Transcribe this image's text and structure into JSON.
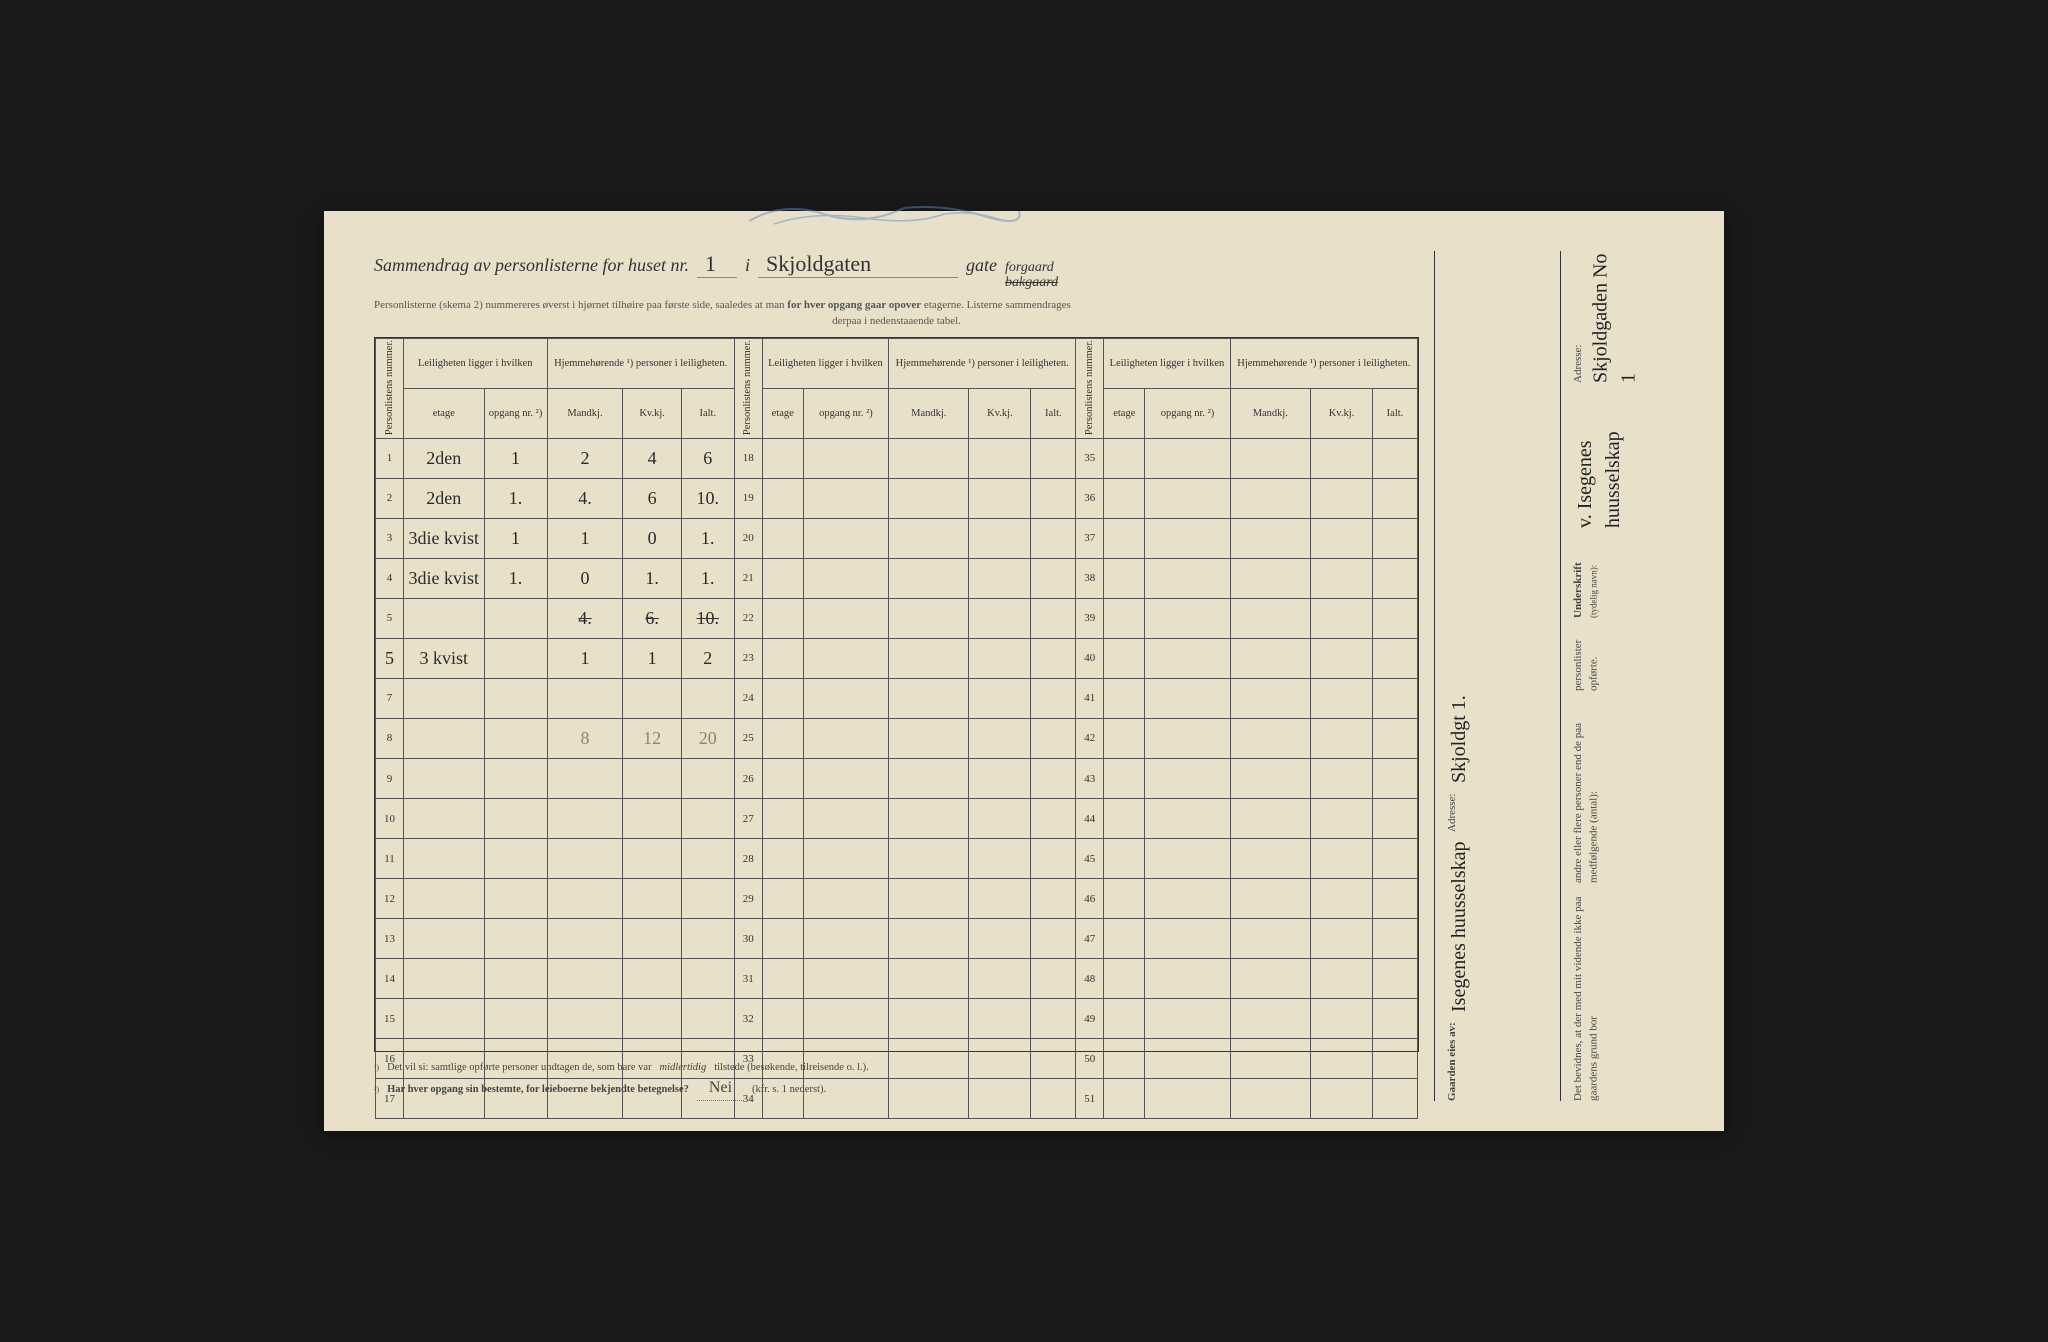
{
  "header": {
    "summary_prefix": "Sammendrag av personlisterne for huset nr.",
    "house_nr": "1",
    "between": "i",
    "street_hw": "Skjoldgaten",
    "street_suffix": "gate",
    "forgaard": "forgaard",
    "bakgaard": "bakgaard"
  },
  "instructions": {
    "line1_a": "Personlisterne (skema 2) nummereres øverst i hjørnet tilhøire paa første side, saaledes at man",
    "line1_b": "for hver opgang gaar opover",
    "line1_c": "etagerne.   Listerne sammendrages",
    "line2": "derpaa i nedenstaaende tabel."
  },
  "table": {
    "col_labels": {
      "personlistens": "Personlistens\nnummer.",
      "leiligheten": "Leiligheten\nligger i hvilken",
      "hjemme": "Hjemmehørende ¹)\npersoner i leiligheten.",
      "etage": "etage",
      "opgang": "opgang\nnr. ²)",
      "mandkj": "Mandkj.",
      "kvkj": "Kv.kj.",
      "ialt": "Ialt."
    },
    "block1_nums": [
      1,
      2,
      3,
      4,
      5,
      6,
      7,
      8,
      9,
      10,
      11,
      12,
      13,
      14,
      15,
      16,
      17
    ],
    "block2_nums": [
      18,
      19,
      20,
      21,
      22,
      23,
      24,
      25,
      26,
      27,
      28,
      29,
      30,
      31,
      32,
      33,
      34
    ],
    "block3_nums": [
      35,
      36,
      37,
      38,
      39,
      40,
      41,
      42,
      43,
      44,
      45,
      46,
      47,
      48,
      49,
      50,
      51
    ],
    "rows": [
      {
        "n": 1,
        "etage": "2den",
        "opg": "1",
        "m": "2",
        "k": "4",
        "i": "6"
      },
      {
        "n": 2,
        "etage": "2den",
        "opg": "1.",
        "m": "4.",
        "k": "6",
        "i": "10."
      },
      {
        "n": 3,
        "etage": "3die kvist",
        "opg": "1",
        "m": "1",
        "k": "0",
        "i": "1."
      },
      {
        "n": 4,
        "etage": "3die kvist",
        "opg": "1.",
        "m": "0",
        "k": "1.",
        "i": "1."
      },
      {
        "n": 5,
        "etage": "",
        "opg": "",
        "m": "4.",
        "k": "6.",
        "i": "10.",
        "strike": true
      },
      {
        "n": "5",
        "etage": "3 kvist",
        "opg": "",
        "m": "1",
        "k": "1",
        "i": "2",
        "prefix": true
      },
      {
        "n": 7,
        "etage": "",
        "opg": "",
        "m": "",
        "k": "",
        "i": ""
      },
      {
        "n": 8,
        "etage": "",
        "opg": "",
        "m": "8",
        "k": "12",
        "i": "20",
        "faint": true
      },
      {
        "n": 9
      },
      {
        "n": 10
      },
      {
        "n": 11
      },
      {
        "n": 12
      },
      {
        "n": 13
      },
      {
        "n": 14
      },
      {
        "n": 15
      },
      {
        "n": 16
      },
      {
        "n": 17
      }
    ]
  },
  "footnotes": {
    "fn1": "Det vil si: samtlige opførte personer undtagen de, som bare var",
    "fn1_it": "midlertidig",
    "fn1_end": "tilstede (besøkende, tilreisende o. l.).",
    "fn2": "Har hver opgang sin bestemte, for leieboerne bekjendte betegnelse?",
    "fn2_ans": "Nei",
    "fn2_end": "(kfr. s. 1 nederst)."
  },
  "side": {
    "panel1": {
      "label": "Gaarden eies av:",
      "hw": "Isegenes huusselskap",
      "addr_label": "Adresse:",
      "addr_hw": "Skjoldgt 1."
    },
    "panel2": {
      "text1": "Det bevidnes, at der med mit vidende ikke paa gaardens grund bor",
      "text2": "andre eller flere personer end de paa medfølgende (antal):",
      "text3": "personlister opførte.",
      "under_label": "Underskrift",
      "under_note": "(tydelig navn):",
      "under_hw": "v. Isegenes huusselskap",
      "addr_label": "Adresse:",
      "addr_hw": "Skjoldgaden No 1"
    }
  },
  "colors": {
    "paper": "#e8e0c8",
    "ink": "#333333",
    "hw": "#2a2a2a",
    "blue": "#5b8bc4"
  }
}
